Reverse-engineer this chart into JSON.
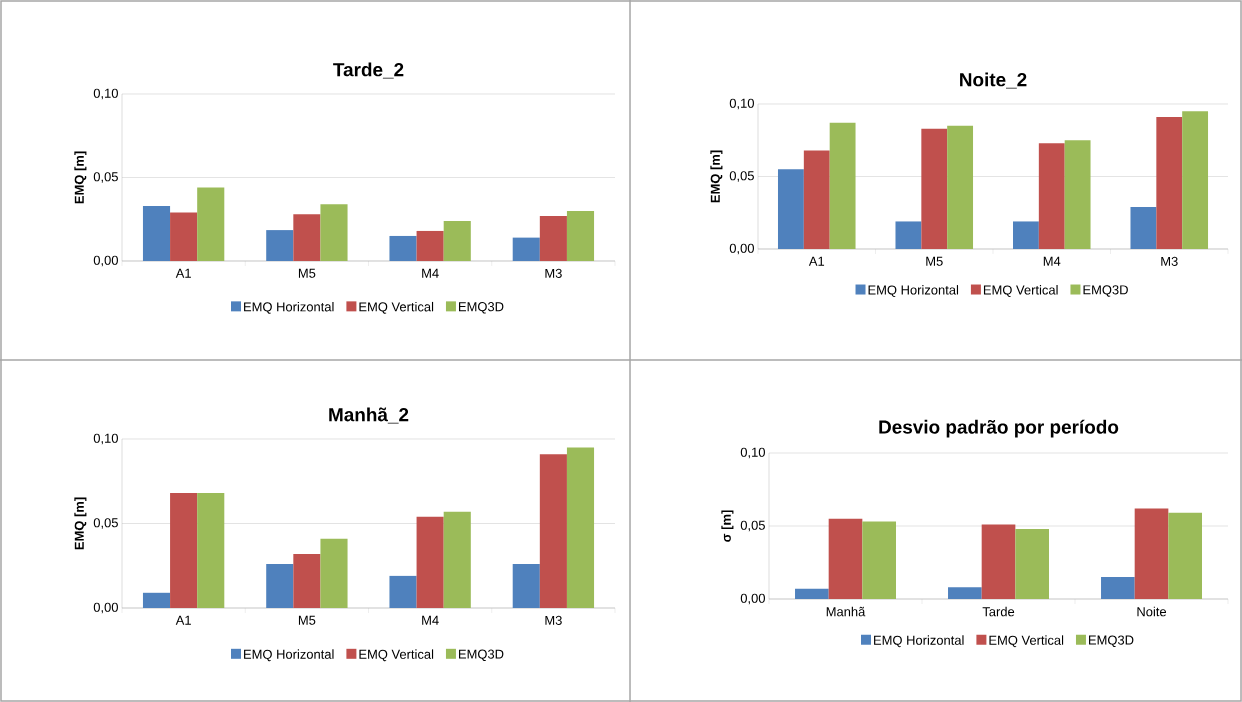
{
  "chart_data": [
    {
      "type": "bar",
      "title": "Tarde_2",
      "ylabel": "EMQ [m]",
      "categories": [
        "A1",
        "M5",
        "M4",
        "M3"
      ],
      "series": [
        {
          "name": "EMQ Horizontal",
          "color": "#4f81bd",
          "values": [
            0.033,
            0.0185,
            0.015,
            0.014
          ]
        },
        {
          "name": "EMQ Vertical",
          "color": "#c0504d",
          "values": [
            0.029,
            0.028,
            0.018,
            0.027
          ]
        },
        {
          "name": "EMQ3D",
          "color": "#9bbb59",
          "values": [
            0.044,
            0.034,
            0.024,
            0.03
          ]
        }
      ],
      "ylim": [
        0,
        0.1
      ],
      "yticks": [
        {
          "value": 0,
          "label": "0,00"
        },
        {
          "value": 0.05,
          "label": "0,05"
        },
        {
          "value": 0.1,
          "label": "0,10"
        }
      ],
      "grid": "y",
      "legend": "bottom"
    },
    {
      "type": "bar",
      "title": "Noite_2",
      "ylabel": "EMQ [m]",
      "categories": [
        "A1",
        "M5",
        "M4",
        "M3"
      ],
      "series": [
        {
          "name": "EMQ Horizontal",
          "color": "#4f81bd",
          "values": [
            0.055,
            0.019,
            0.019,
            0.029
          ]
        },
        {
          "name": "EMQ Vertical",
          "color": "#c0504d",
          "values": [
            0.068,
            0.083,
            0.073,
            0.091
          ]
        },
        {
          "name": "EMQ3D",
          "color": "#9bbb59",
          "values": [
            0.087,
            0.085,
            0.075,
            0.095
          ]
        }
      ],
      "ylim": [
        0,
        0.1
      ],
      "yticks": [
        {
          "value": 0,
          "label": "0,00"
        },
        {
          "value": 0.05,
          "label": "0,05"
        },
        {
          "value": 0.1,
          "label": "0,10"
        }
      ],
      "grid": "y",
      "legend": "bottom"
    },
    {
      "type": "bar",
      "title": "Manhã_2",
      "ylabel": "EMQ [m]",
      "categories": [
        "A1",
        "M5",
        "M4",
        "M3"
      ],
      "series": [
        {
          "name": "EMQ Horizontal",
          "color": "#4f81bd",
          "values": [
            0.009,
            0.026,
            0.019,
            0.026
          ]
        },
        {
          "name": "EMQ Vertical",
          "color": "#c0504d",
          "values": [
            0.068,
            0.032,
            0.054,
            0.091
          ]
        },
        {
          "name": "EMQ3D",
          "color": "#9bbb59",
          "values": [
            0.068,
            0.041,
            0.057,
            0.095
          ]
        }
      ],
      "ylim": [
        0,
        0.1
      ],
      "yticks": [
        {
          "value": 0,
          "label": "0,00"
        },
        {
          "value": 0.05,
          "label": "0,05"
        },
        {
          "value": 0.1,
          "label": "0,10"
        }
      ],
      "grid": "y",
      "legend": "bottom"
    },
    {
      "type": "bar",
      "title": "Desvio padrão por período",
      "ylabel": "σ [m]",
      "categories": [
        "Manhã",
        "Tarde",
        "Noite"
      ],
      "series": [
        {
          "name": "EMQ Horizontal",
          "color": "#4f81bd",
          "values": [
            0.007,
            0.008,
            0.015
          ]
        },
        {
          "name": "EMQ Vertical",
          "color": "#c0504d",
          "values": [
            0.055,
            0.051,
            0.062
          ]
        },
        {
          "name": "EMQ3D",
          "color": "#9bbb59",
          "values": [
            0.053,
            0.048,
            0.059
          ]
        }
      ],
      "ylim": [
        0,
        0.1
      ],
      "yticks": [
        {
          "value": 0,
          "label": "0,00"
        },
        {
          "value": 0.05,
          "label": "0,05"
        },
        {
          "value": 0.1,
          "label": "0,10"
        }
      ],
      "grid": "y",
      "legend": "bottom"
    }
  ]
}
